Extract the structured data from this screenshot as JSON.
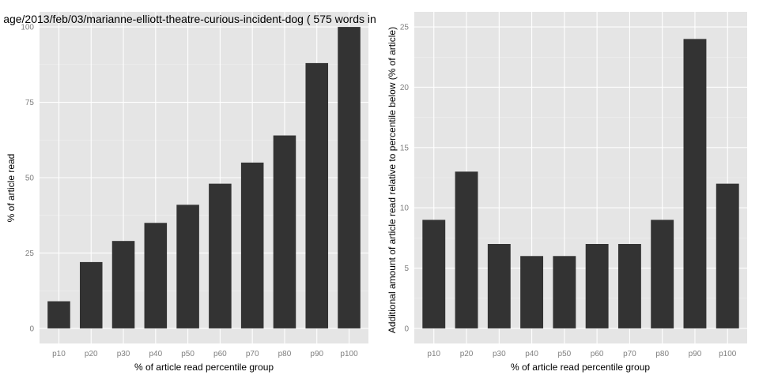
{
  "chart_data": [
    {
      "type": "bar",
      "title": "age/2013/feb/03/marianne-elliott-theatre-curious-incident-dog ( 575 words in",
      "xlabel": "% of article read percentile group",
      "ylabel": "% of article read",
      "categories": [
        "p10",
        "p20",
        "p30",
        "p40",
        "p50",
        "p60",
        "p70",
        "p80",
        "p90",
        "p100"
      ],
      "values": [
        9,
        22,
        29,
        35,
        41,
        48,
        55,
        64,
        88,
        100
      ],
      "ylim": [
        0,
        100
      ],
      "yticks": [
        0,
        25,
        50,
        75,
        100
      ],
      "grid": true,
      "colors": {
        "bar": "#333333",
        "panel": "#e5e5e5",
        "grid_major": "#ffffff",
        "grid_minor": "#f2f2f2"
      }
    },
    {
      "type": "bar",
      "title": "",
      "xlabel": "% of article read percentile group",
      "ylabel": "Additional amount of article read relative to percentile below (% of article)",
      "categories": [
        "p10",
        "p20",
        "p30",
        "p40",
        "p50",
        "p60",
        "p70",
        "p80",
        "p90",
        "p100"
      ],
      "values": [
        9,
        13,
        7,
        6,
        6,
        7,
        7,
        9,
        24,
        12
      ],
      "ylim": [
        0,
        25
      ],
      "yticks": [
        0,
        5,
        10,
        15,
        20,
        25
      ],
      "grid": true,
      "colors": {
        "bar": "#333333",
        "panel": "#e5e5e5",
        "grid_major": "#ffffff",
        "grid_minor": "#f2f2f2"
      }
    }
  ]
}
